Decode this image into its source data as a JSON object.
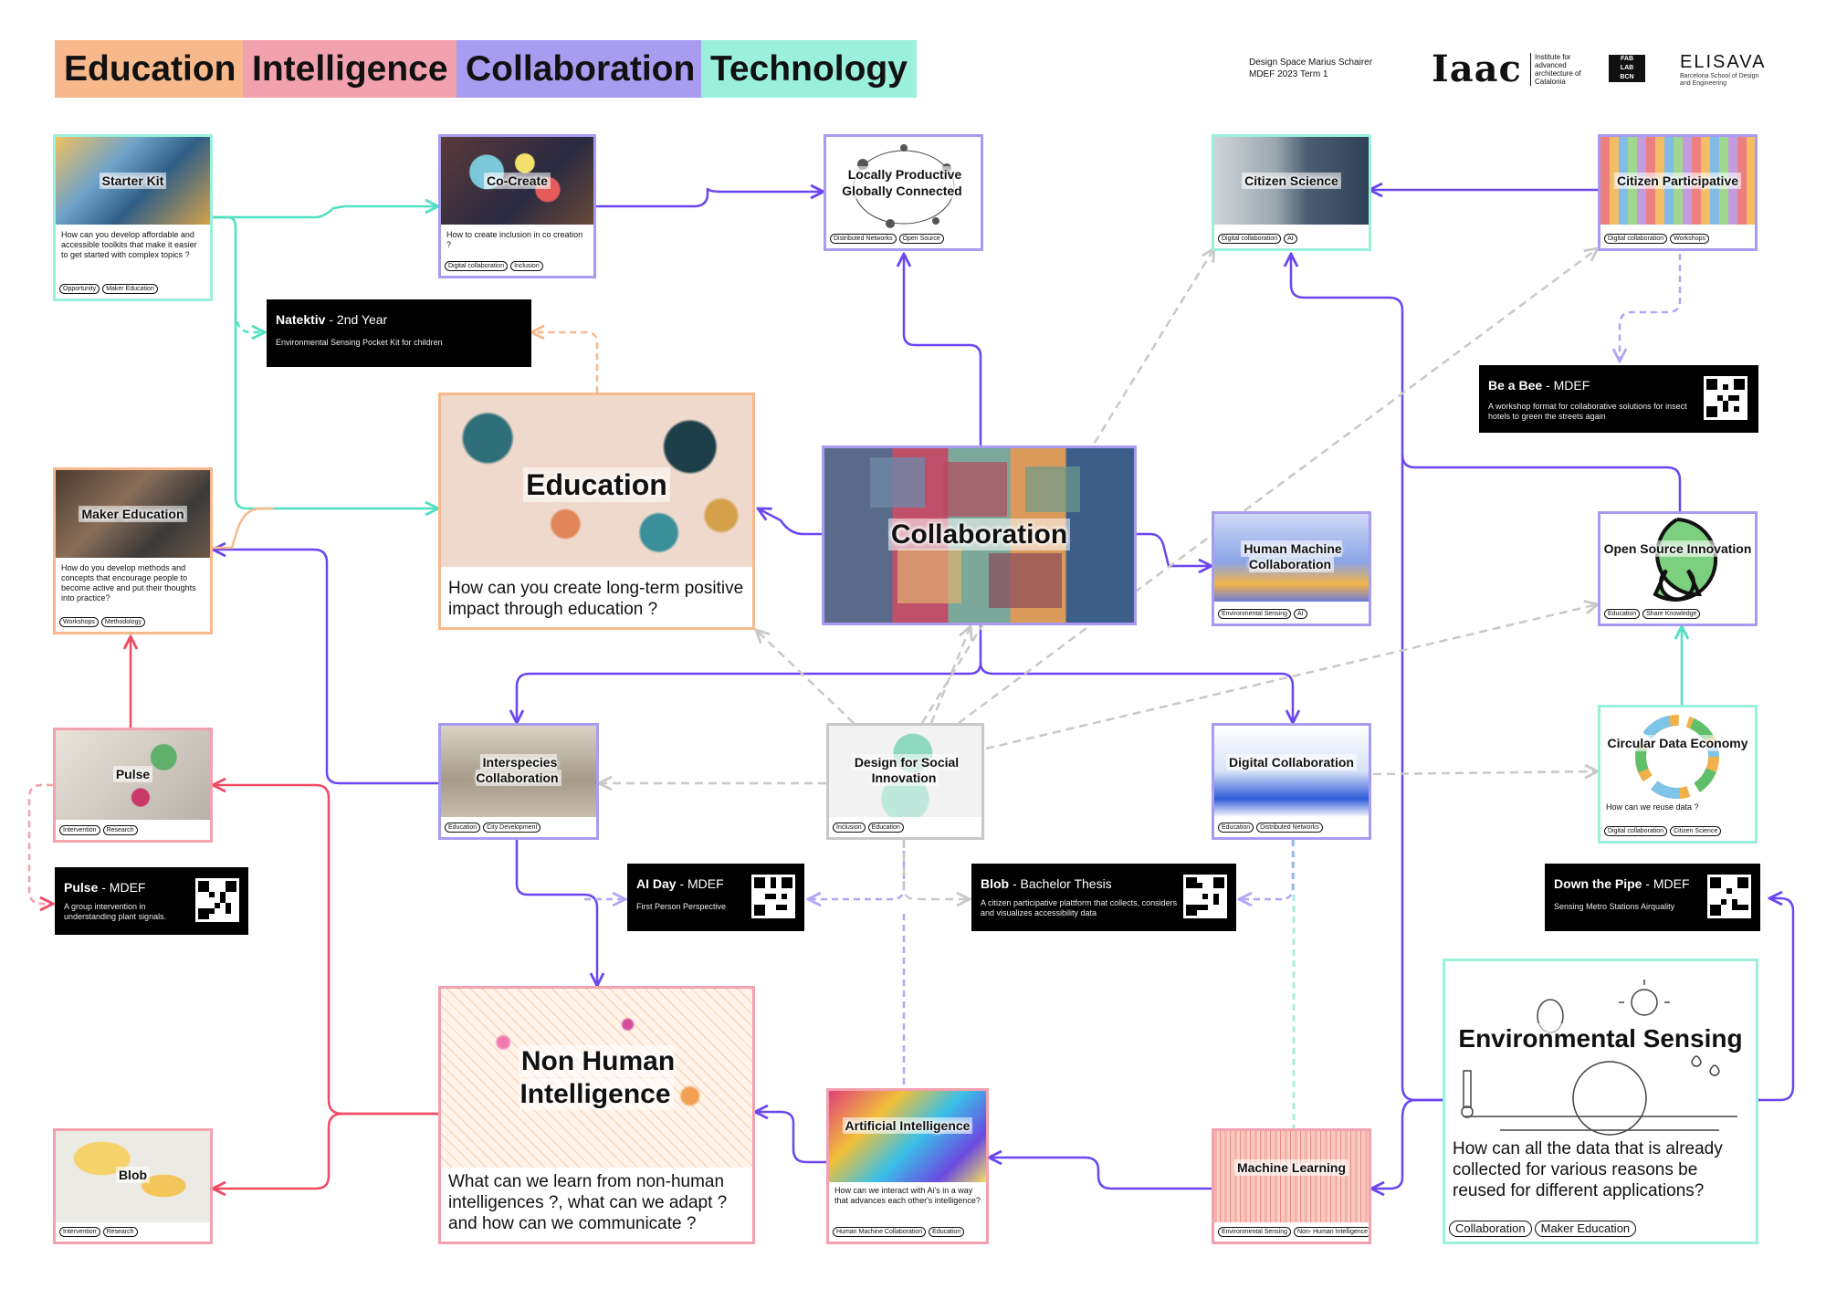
{
  "legend": {
    "education": "Education",
    "intelligence": "Intelligence",
    "collaboration": "Collaboration",
    "technology": "Technology"
  },
  "colors": {
    "education": "#f7b98c",
    "intelligence": "#f2a1ae",
    "collaboration": "#a79cf0",
    "technology": "#9bf0dc",
    "collaboration_line": "#6b46f0",
    "intelligence_line": "#f04a62",
    "technology_line": "#4fe0c2",
    "dashed_gray": "#c8c8c8"
  },
  "credits": {
    "line1": "Design Space Marius Schairer",
    "line2": "MDEF 2023 Term 1"
  },
  "logos": {
    "iaac": "Iaac",
    "iaac_sub": "Institute for advanced architecture of Catalonia",
    "fablab": [
      "FAB",
      "LAB",
      "BCN"
    ],
    "elisava": "ELISAVA",
    "elisava_sub": "Barcelona School of Design and Engineering"
  },
  "cards": {
    "starter_kit": {
      "title": "Starter Kit",
      "question": "How can you develop affordable and accessible toolkits that make it easier to get started with complex topics ?",
      "tags": [
        "Opportunity",
        "Maker Education"
      ]
    },
    "co_create": {
      "title": "Co-Create",
      "question": "How to create inclusion in co creation ?",
      "tags": [
        "Digital collaboration",
        "Inclusion"
      ]
    },
    "locally_productive": {
      "title": "Locally Productive Globally Connected",
      "tags": [
        "Distributed Networks",
        "Open Source"
      ]
    },
    "citizen_science": {
      "title": "Citizen Science",
      "tags": [
        "Digital collaboration",
        "AI"
      ]
    },
    "citizen_participative": {
      "title": "Citizen Participative",
      "tags": [
        "Digital collaboration",
        "Workshops"
      ]
    },
    "maker_education": {
      "title": "Maker Education",
      "question": "How do you develop methods and concepts that encourage people to become active and put their thoughts into practice?",
      "tags": [
        "Workshops",
        "Methodology"
      ]
    },
    "education": {
      "title": "Education",
      "question": "How can you create long-term positive impact through education ?"
    },
    "collaboration": {
      "title": "Collaboration"
    },
    "human_machine": {
      "title": "Human Machine Collaboration",
      "tags": [
        "Environmental Sensing",
        "AI"
      ]
    },
    "open_source": {
      "title": "Open Source Innovation",
      "tags": [
        "Education",
        "Share Knowledge"
      ]
    },
    "pulse": {
      "title": "Pulse",
      "tags": [
        "Intervention",
        "Research"
      ]
    },
    "interspecies": {
      "title": "Interspecies Collaboration",
      "tags": [
        "Education",
        "City Development"
      ]
    },
    "design_social": {
      "title": "Design for Social Innovation",
      "tags": [
        "Inclusion",
        "Education"
      ]
    },
    "digital_collab": {
      "title": "Digital Collaboration",
      "tags": [
        "Education",
        "Distributed Networks"
      ]
    },
    "circular_data": {
      "title": "Circular Data Economy",
      "question": "How can we reuse data ?",
      "tags": [
        "Digital collaboration",
        "Citizen Science"
      ]
    },
    "non_human": {
      "title": "Non Human Intelligence",
      "question": "What can we learn from non-human intelligences ?, what can we adapt ? and how can we communicate ?"
    },
    "ai": {
      "title": "Artificial Intelligence",
      "question": "How can we interact with Ai's in a way that advances each other's intelligence?",
      "tags": [
        "Human Machine Collaboration",
        "Education"
      ]
    },
    "machine_learning": {
      "title": "Machine Learning",
      "tags": [
        "Environmental Sensing",
        "Non- Human Intelligence"
      ]
    },
    "env_sensing": {
      "title": "Environmental Sensing",
      "question": "How can all the data that is already collected for various reasons be reused for different applications?",
      "tags": [
        "Collaboration",
        "Maker Education"
      ]
    },
    "blob": {
      "title": "Blob",
      "tags": [
        "Intervention",
        "Research"
      ]
    }
  },
  "projects": {
    "natektiv": {
      "name": "Natektiv",
      "suffix": " - 2nd Year",
      "desc": "Environmental Sensing Pocket Kit for children"
    },
    "be_a_bee": {
      "name": "Be a Bee",
      "suffix": " - MDEF",
      "desc": "A workshop format for collaborative solutions for insect hotels to green the streets again"
    },
    "pulse_mdef": {
      "name": "Pulse",
      "suffix": " - MDEF",
      "desc": "A group intervention in understanding plant signals."
    },
    "ai_day": {
      "name": "AI Day",
      "suffix": " - MDEF",
      "desc": "First Person Perspective"
    },
    "blob_thesis": {
      "name": "Blob",
      "suffix": " - Bachelor Thesis",
      "desc": "A citizen participative plattform that collects, considers and visualizes accessibility data"
    },
    "down_the_pipe": {
      "name": "Down the Pipe",
      "suffix": " - MDEF",
      "desc": "Sensing Metro Stations Airquality"
    }
  }
}
